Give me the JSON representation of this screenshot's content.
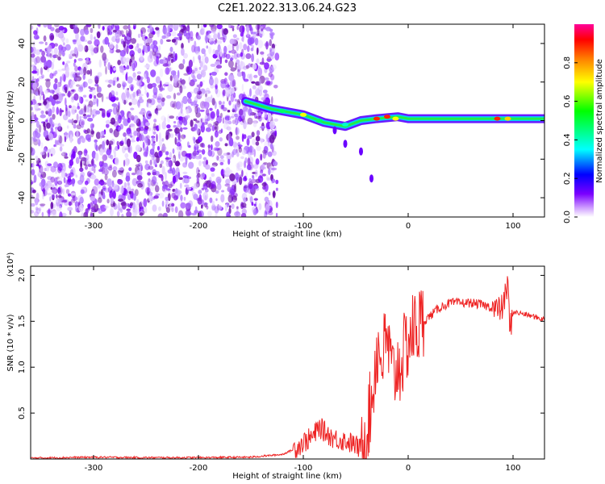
{
  "title": "C2E1.2022.313.06.24.G23",
  "chart_data": [
    {
      "type": "heatmap",
      "xlabel": "Height of straight line (km)",
      "ylabel": "Frequency (Hz)",
      "xlim": [
        -360,
        130
      ],
      "ylim": [
        -50,
        50
      ],
      "x_ticks": [
        -300,
        -200,
        -100,
        0,
        100
      ],
      "y_ticks": [
        -40,
        -20,
        0,
        20,
        40
      ],
      "colorbar": {
        "label": "Normalized spectral amplitude",
        "range": [
          0,
          1
        ],
        "ticks": [
          "0.0",
          "0.2",
          "0.4",
          "0.6",
          "0.8"
        ],
        "tick_values": [
          0.0,
          0.2,
          0.4,
          0.6,
          0.8
        ],
        "colors": [
          "#ffffff",
          "#cc99ff",
          "#7a00ff",
          "#0000ff",
          "#00ffff",
          "#00ff00",
          "#ffff00",
          "#ff8000",
          "#ff0000",
          "#ff0099"
        ]
      },
      "regions": [
        {
          "name": "noise",
          "x_range": [
            -360,
            -125
          ],
          "freq_range": [
            -50,
            50
          ],
          "amplitude": "low",
          "color": "#8a2be2"
        },
        {
          "name": "signal-track",
          "points": [
            [
              -155,
              10
            ],
            [
              -130,
              6
            ],
            [
              -100,
              3
            ],
            [
              -80,
              -1
            ],
            [
              -60,
              -3
            ],
            [
              -45,
              0
            ],
            [
              -30,
              1
            ],
            [
              -10,
              2
            ],
            [
              0,
              1
            ],
            [
              130,
              1
            ]
          ],
          "peak_amplitude": 0.95
        },
        {
          "name": "tail",
          "points": [
            [
              -70,
              -5
            ],
            [
              -60,
              -12
            ],
            [
              -45,
              -16
            ],
            [
              -35,
              -30
            ]
          ],
          "peak_amplitude": 0.15
        }
      ]
    },
    {
      "type": "line",
      "xlabel": "Height of straight line (km)",
      "ylabel": "SNR (10 * v/v)",
      "scale_label": "(x10⁴)",
      "xlim": [
        -360,
        130
      ],
      "ylim": [
        0,
        2.1
      ],
      "x_ticks": [
        -300,
        -200,
        -100,
        0,
        100
      ],
      "y_ticks": [
        0.5,
        1.0,
        1.5,
        2.0
      ],
      "color": "#ee2222",
      "x": [
        -360,
        -300,
        -250,
        -200,
        -150,
        -120,
        -110,
        -100,
        -90,
        -85,
        -80,
        -70,
        -60,
        -50,
        -45,
        -40,
        -35,
        -30,
        -25,
        -20,
        -15,
        -10,
        -5,
        0,
        5,
        10,
        20,
        30,
        40,
        50,
        60,
        70,
        80,
        85,
        90,
        95,
        97,
        100,
        110,
        120,
        130
      ],
      "y": [
        0.01,
        0.02,
        0.015,
        0.015,
        0.02,
        0.05,
        0.1,
        0.18,
        0.25,
        0.35,
        0.3,
        0.22,
        0.2,
        0.15,
        0.1,
        0.3,
        0.6,
        1.2,
        1.1,
        1.3,
        0.9,
        1.0,
        1.1,
        1.3,
        1.4,
        1.45,
        1.55,
        1.65,
        1.7,
        1.7,
        1.7,
        1.68,
        1.65,
        1.62,
        1.65,
        1.9,
        1.4,
        1.6,
        1.58,
        1.55,
        1.52
      ]
    }
  ]
}
